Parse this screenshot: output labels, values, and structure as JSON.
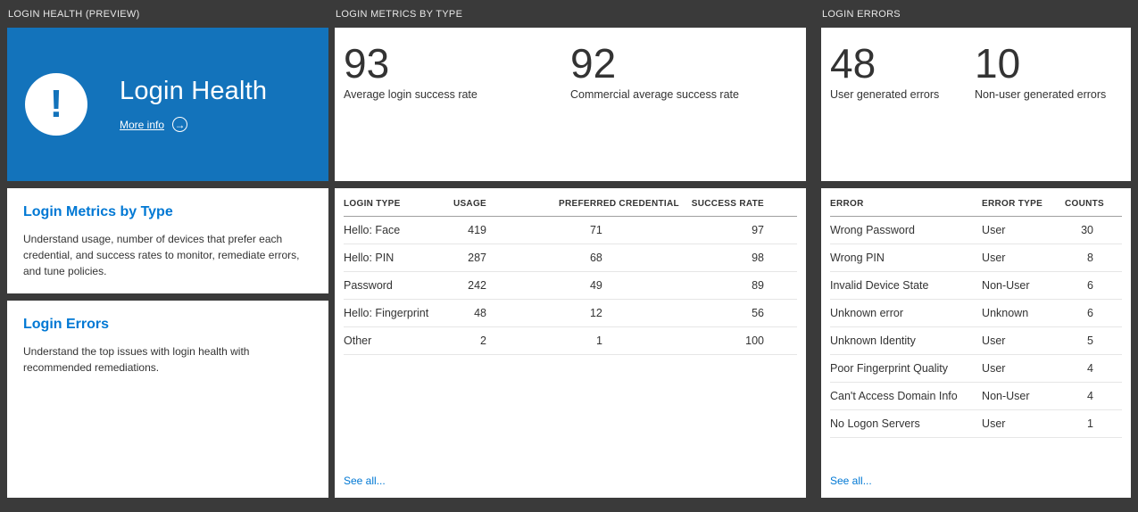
{
  "colors": {
    "background": "#3a3a3a",
    "tile_blue": "#1373bb",
    "accent": "#0078d4"
  },
  "icons": {
    "alert_glyph": "!",
    "arrow_right_glyph": "→"
  },
  "panels": {
    "health": {
      "header": "LOGIN HEALTH (PREVIEW)",
      "tile_title": "Login Health",
      "more_info_label": "More info",
      "sections": [
        {
          "title": "Login Metrics by Type",
          "description": "Understand usage, number of devices that prefer each credential, and success rates to monitor, remediate errors, and tune policies."
        },
        {
          "title": "Login Errors",
          "description": "Understand the top issues with login health with recommended remediations."
        }
      ]
    },
    "metrics": {
      "header": "LOGIN METRICS BY TYPE",
      "stats": [
        {
          "value": "93",
          "label": "Average login success rate"
        },
        {
          "value": "92",
          "label": "Commercial average success rate"
        }
      ],
      "table": {
        "columns": [
          "LOGIN TYPE",
          "USAGE",
          "PREFERRED CREDENTIAL",
          "SUCCESS RATE"
        ],
        "rows": [
          [
            "Hello: Face",
            "419",
            "71",
            "97"
          ],
          [
            "Hello: PIN",
            "287",
            "68",
            "98"
          ],
          [
            "Password",
            "242",
            "49",
            "89"
          ],
          [
            "Hello: Fingerprint",
            "48",
            "12",
            "56"
          ],
          [
            "Other",
            "2",
            "1",
            "100"
          ]
        ]
      },
      "see_all_label": "See all..."
    },
    "errors": {
      "header": "LOGIN ERRORS",
      "stats": [
        {
          "value": "48",
          "label": "User generated errors"
        },
        {
          "value": "10",
          "label": "Non-user generated errors"
        }
      ],
      "table": {
        "columns": [
          "ERROR",
          "ERROR TYPE",
          "COUNTS"
        ],
        "rows": [
          [
            "Wrong Password",
            "User",
            "30"
          ],
          [
            "Wrong PIN",
            "User",
            "8"
          ],
          [
            "Invalid Device State",
            "Non-User",
            "6"
          ],
          [
            "Unknown error",
            "Unknown",
            "6"
          ],
          [
            "Unknown Identity",
            "User",
            "5"
          ],
          [
            "Poor Fingerprint Quality",
            "User",
            "4"
          ],
          [
            "Can't Access Domain Info",
            "Non-User",
            "4"
          ],
          [
            "No Logon Servers",
            "User",
            "1"
          ]
        ]
      },
      "see_all_label": "See all..."
    }
  }
}
